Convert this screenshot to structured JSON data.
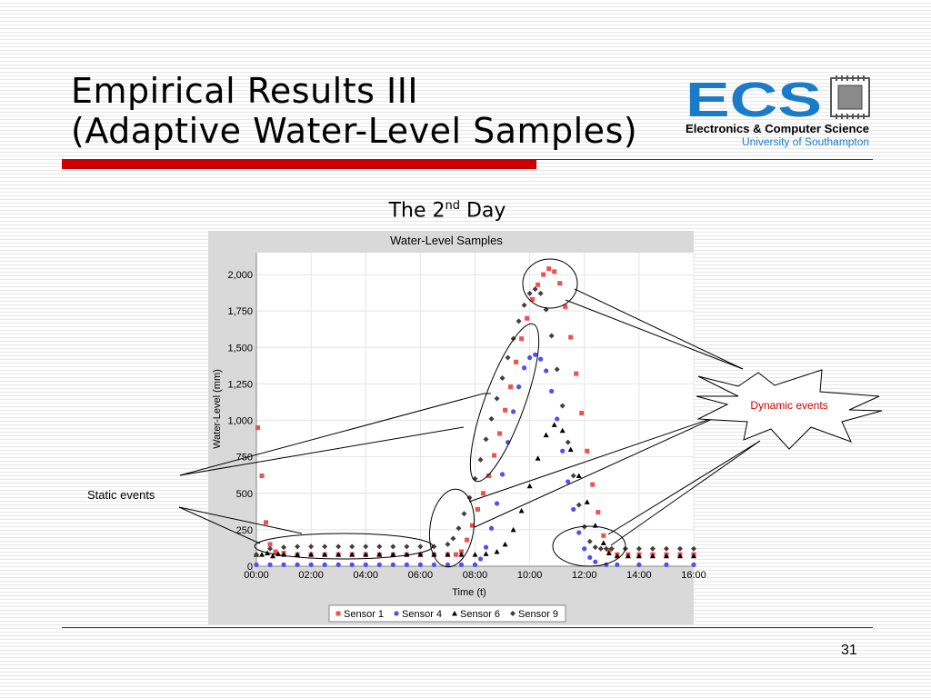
{
  "slide": {
    "title_line1": "Empirical Results III",
    "title_line2": "(Adaptive Water-Level Samples)",
    "subtitle_main": "The 2",
    "subtitle_sup": "nd",
    "subtitle_rest": " Day",
    "page_number": "31",
    "accent_color": "#cc0000"
  },
  "logo": {
    "letters": "ECS",
    "line1": "Electronics & Computer Science",
    "line2": "University of Southampton",
    "brand_color": "#1a7cc8"
  },
  "annotations": {
    "static_events": "Static events",
    "dynamic_events": "Dynamic events"
  },
  "chart_data": {
    "type": "scatter",
    "title": "Water-Level Samples",
    "xlabel": "Time (t)",
    "ylabel": "Water-Level (mm)",
    "xlim": [
      0,
      16
    ],
    "ylim": [
      0,
      2150
    ],
    "x_ticks": [
      "00:00",
      "02:00",
      "04:00",
      "06:00",
      "08:00",
      "10:00",
      "12:00",
      "14:00",
      "16:00"
    ],
    "y_ticks": [
      "0",
      "250",
      "500",
      "750",
      "1,000",
      "1,250",
      "1,500",
      "1,750",
      "2,000"
    ],
    "legend_position": "bottom",
    "grid": true,
    "series": [
      {
        "name": "Sensor 1",
        "color": "#f05050",
        "marker": "square",
        "points": [
          [
            0.05,
            950
          ],
          [
            0.2,
            620
          ],
          [
            0.35,
            300
          ],
          [
            0.5,
            150
          ],
          [
            0.7,
            100
          ],
          [
            1.0,
            90
          ],
          [
            1.5,
            80
          ],
          [
            2,
            80
          ],
          [
            2.5,
            80
          ],
          [
            3,
            80
          ],
          [
            3.5,
            80
          ],
          [
            4,
            80
          ],
          [
            4.5,
            80
          ],
          [
            5,
            80
          ],
          [
            5.5,
            80
          ],
          [
            6,
            80
          ],
          [
            6.5,
            80
          ],
          [
            7,
            80
          ],
          [
            7.3,
            80
          ],
          [
            7.5,
            100
          ],
          [
            7.7,
            180
          ],
          [
            7.9,
            280
          ],
          [
            8.1,
            390
          ],
          [
            8.3,
            500
          ],
          [
            8.5,
            620
          ],
          [
            8.7,
            760
          ],
          [
            8.9,
            910
          ],
          [
            9.1,
            1070
          ],
          [
            9.3,
            1230
          ],
          [
            9.5,
            1400
          ],
          [
            9.7,
            1560
          ],
          [
            9.9,
            1700
          ],
          [
            10.1,
            1830
          ],
          [
            10.3,
            1930
          ],
          [
            10.5,
            2000
          ],
          [
            10.7,
            2040
          ],
          [
            10.9,
            2020
          ],
          [
            11.1,
            1940
          ],
          [
            11.3,
            1780
          ],
          [
            11.5,
            1570
          ],
          [
            11.7,
            1320
          ],
          [
            11.9,
            1050
          ],
          [
            12.1,
            790
          ],
          [
            12.3,
            560
          ],
          [
            12.5,
            370
          ],
          [
            12.7,
            210
          ],
          [
            12.9,
            110
          ],
          [
            13.2,
            80
          ],
          [
            13.6,
            80
          ],
          [
            14,
            80
          ],
          [
            14.5,
            80
          ],
          [
            15,
            80
          ],
          [
            15.5,
            80
          ],
          [
            16,
            80
          ]
        ]
      },
      {
        "name": "Sensor 4",
        "color": "#5050f0",
        "marker": "circle",
        "points": [
          [
            0.0,
            10
          ],
          [
            0.5,
            10
          ],
          [
            1,
            10
          ],
          [
            1.5,
            10
          ],
          [
            2,
            10
          ],
          [
            2.5,
            10
          ],
          [
            3,
            10
          ],
          [
            3.5,
            10
          ],
          [
            4,
            10
          ],
          [
            4.5,
            10
          ],
          [
            5,
            10
          ],
          [
            5.5,
            10
          ],
          [
            6,
            10
          ],
          [
            6.5,
            10
          ],
          [
            7,
            10
          ],
          [
            7.5,
            10
          ],
          [
            8,
            10
          ],
          [
            8.2,
            50
          ],
          [
            8.4,
            130
          ],
          [
            8.6,
            260
          ],
          [
            8.8,
            430
          ],
          [
            9.0,
            630
          ],
          [
            9.2,
            850
          ],
          [
            9.4,
            1060
          ],
          [
            9.6,
            1230
          ],
          [
            9.8,
            1360
          ],
          [
            10.0,
            1430
          ],
          [
            10.2,
            1450
          ],
          [
            10.4,
            1420
          ],
          [
            10.6,
            1340
          ],
          [
            10.8,
            1200
          ],
          [
            11.0,
            1010
          ],
          [
            11.2,
            790
          ],
          [
            11.4,
            580
          ],
          [
            11.6,
            390
          ],
          [
            11.8,
            230
          ],
          [
            12.0,
            120
          ],
          [
            12.2,
            60
          ],
          [
            12.4,
            30
          ],
          [
            12.8,
            10
          ],
          [
            13.2,
            10
          ],
          [
            14,
            10
          ],
          [
            15,
            10
          ],
          [
            16,
            10
          ]
        ]
      },
      {
        "name": "Sensor 6",
        "color": "#000000",
        "marker": "triangle",
        "points": [
          [
            0,
            80
          ],
          [
            0.2,
            80
          ],
          [
            0.4,
            90
          ],
          [
            0.6,
            70
          ],
          [
            0.8,
            85
          ],
          [
            1,
            80
          ],
          [
            1.5,
            80
          ],
          [
            2,
            80
          ],
          [
            2.5,
            80
          ],
          [
            3,
            80
          ],
          [
            3.5,
            80
          ],
          [
            4,
            80
          ],
          [
            4.5,
            80
          ],
          [
            5,
            80
          ],
          [
            5.5,
            80
          ],
          [
            6,
            80
          ],
          [
            6.5,
            80
          ],
          [
            7,
            80
          ],
          [
            7.5,
            80
          ],
          [
            8,
            80
          ],
          [
            8.4,
            85
          ],
          [
            8.8,
            100
          ],
          [
            9.1,
            150
          ],
          [
            9.4,
            250
          ],
          [
            9.7,
            380
          ],
          [
            10.0,
            550
          ],
          [
            10.3,
            740
          ],
          [
            10.6,
            900
          ],
          [
            10.9,
            970
          ],
          [
            11.2,
            930
          ],
          [
            11.5,
            800
          ],
          [
            11.8,
            620
          ],
          [
            12.1,
            440
          ],
          [
            12.4,
            280
          ],
          [
            12.7,
            160
          ],
          [
            12.9,
            90
          ],
          [
            13.2,
            70
          ],
          [
            13.6,
            70
          ],
          [
            14.0,
            70
          ],
          [
            14.5,
            70
          ],
          [
            15,
            70
          ],
          [
            15.5,
            70
          ],
          [
            16,
            70
          ]
        ]
      },
      {
        "name": "Sensor 9",
        "color": "#404040",
        "marker": "diamond",
        "points": [
          [
            0,
            80
          ],
          [
            0.5,
            120
          ],
          [
            1,
            130
          ],
          [
            1.5,
            135
          ],
          [
            2,
            135
          ],
          [
            2.5,
            135
          ],
          [
            3,
            135
          ],
          [
            3.5,
            135
          ],
          [
            4,
            135
          ],
          [
            4.5,
            135
          ],
          [
            5,
            135
          ],
          [
            5.5,
            135
          ],
          [
            6,
            135
          ],
          [
            6.5,
            135
          ],
          [
            7,
            150
          ],
          [
            7.2,
            190
          ],
          [
            7.4,
            260
          ],
          [
            7.6,
            360
          ],
          [
            7.8,
            470
          ],
          [
            8.0,
            600
          ],
          [
            8.2,
            730
          ],
          [
            8.4,
            870
          ],
          [
            8.6,
            1010
          ],
          [
            8.8,
            1150
          ],
          [
            9.0,
            1290
          ],
          [
            9.2,
            1430
          ],
          [
            9.4,
            1560
          ],
          [
            9.6,
            1680
          ],
          [
            9.8,
            1790
          ],
          [
            10.0,
            1870
          ],
          [
            10.2,
            1900
          ],
          [
            10.4,
            1870
          ],
          [
            10.6,
            1760
          ],
          [
            10.8,
            1580
          ],
          [
            11.0,
            1350
          ],
          [
            11.2,
            1100
          ],
          [
            11.4,
            850
          ],
          [
            11.6,
            620
          ],
          [
            11.8,
            420
          ],
          [
            12.0,
            270
          ],
          [
            12.2,
            170
          ],
          [
            12.4,
            130
          ],
          [
            12.6,
            120
          ],
          [
            12.8,
            120
          ],
          [
            13,
            120
          ],
          [
            13.5,
            120
          ],
          [
            14,
            120
          ],
          [
            14.5,
            120
          ],
          [
            15,
            120
          ],
          [
            15.5,
            120
          ],
          [
            16,
            120
          ]
        ]
      }
    ]
  }
}
